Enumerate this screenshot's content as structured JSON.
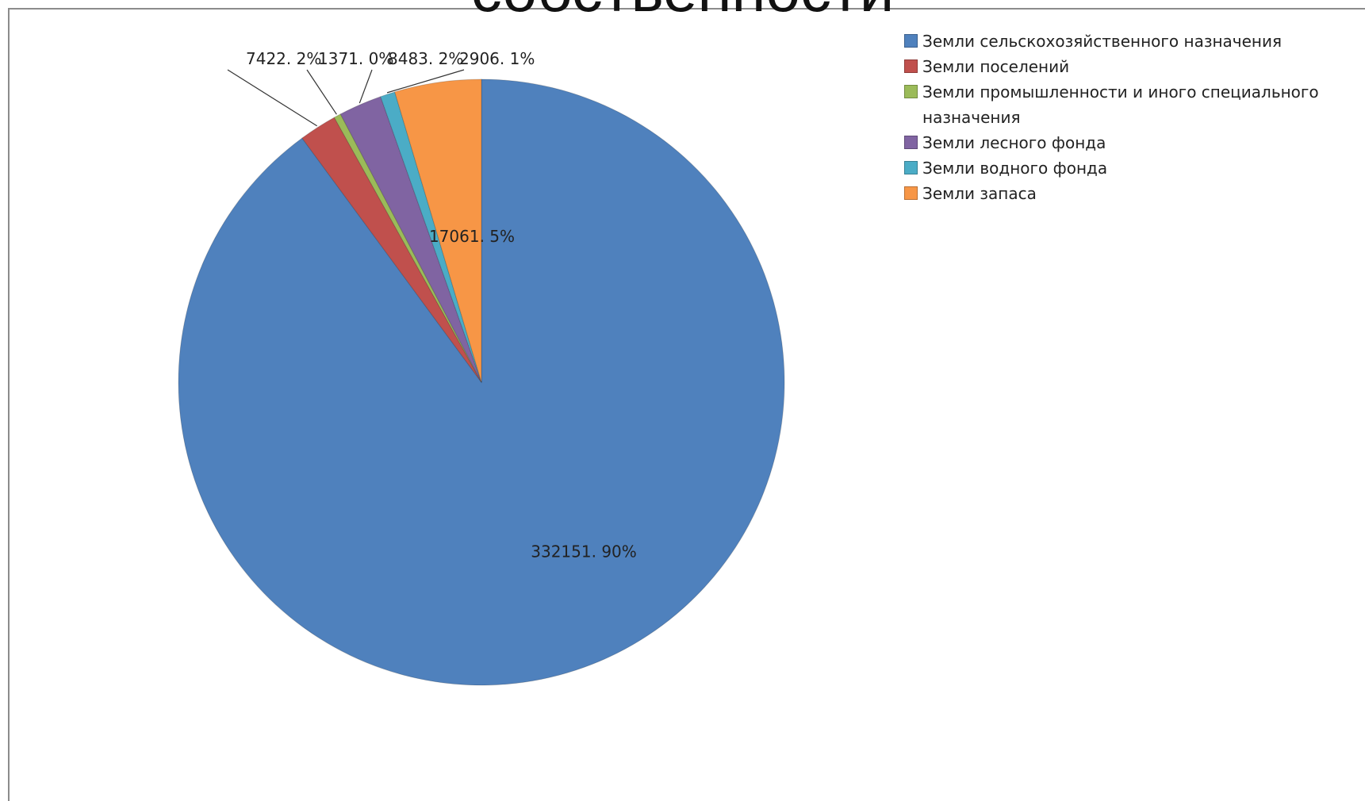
{
  "title": "собственности",
  "chart_data": {
    "type": "pie",
    "slices": [
      {
        "name": "Земли сельскохозяйственного назначения",
        "value": 332151,
        "percent": 90,
        "label": "332151. 90%",
        "color": "#4f81bd"
      },
      {
        "name": "Земли поселений",
        "value": 7422,
        "percent": 2,
        "label": "7422. 2%",
        "color": "#c0504d"
      },
      {
        "name": "Земли промышленности и иного специального назначения",
        "value": 1371,
        "percent": 0,
        "label": "1371. 0%",
        "color": "#9bbb59"
      },
      {
        "name": "Земли лесного фонда",
        "value": 8483,
        "percent": 2,
        "label": "8483. 2%",
        "color": "#8064a2"
      },
      {
        "name": "Земли водного фонда",
        "value": 2906,
        "percent": 1,
        "label": "2906. 1%",
        "color": "#4bacc6"
      },
      {
        "name": "Земли запаса",
        "value": 17061,
        "percent": 5,
        "label": "17061. 5%",
        "color": "#f79646"
      }
    ],
    "start_angle": "12 o'clock",
    "direction": "clockwise",
    "legend_position": "top-right"
  }
}
